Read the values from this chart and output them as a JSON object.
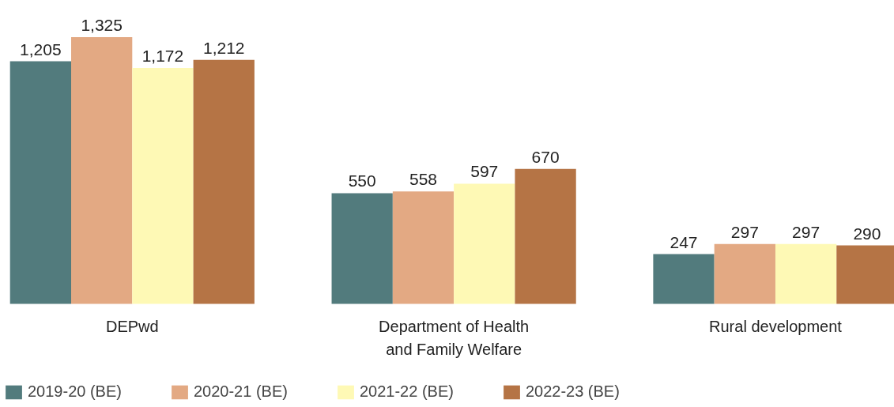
{
  "chart_data": {
    "type": "bar",
    "categories": [
      "DEPwd",
      "Department of Health and Family Welfare",
      "Rural development"
    ],
    "series": [
      {
        "name": "2019-20 (BE)",
        "color": "#527b7d",
        "values": [
          1205,
          550,
          247
        ],
        "value_labels": [
          "1,205",
          "550",
          "247"
        ]
      },
      {
        "name": "2020-21 (BE)",
        "color": "#e3a983",
        "values": [
          1325,
          558,
          297
        ],
        "value_labels": [
          "1,325",
          "558",
          "297"
        ]
      },
      {
        "name": "2021-22 (BE)",
        "color": "#fef9b5",
        "values": [
          1172,
          597,
          297
        ],
        "value_labels": [
          "1,172",
          "597",
          "297"
        ]
      },
      {
        "name": "2022-23 (BE)",
        "color": "#b57445",
        "values": [
          1212,
          670,
          290
        ],
        "value_labels": [
          "1,212",
          "670",
          "290"
        ]
      }
    ],
    "legend": "bottom"
  }
}
